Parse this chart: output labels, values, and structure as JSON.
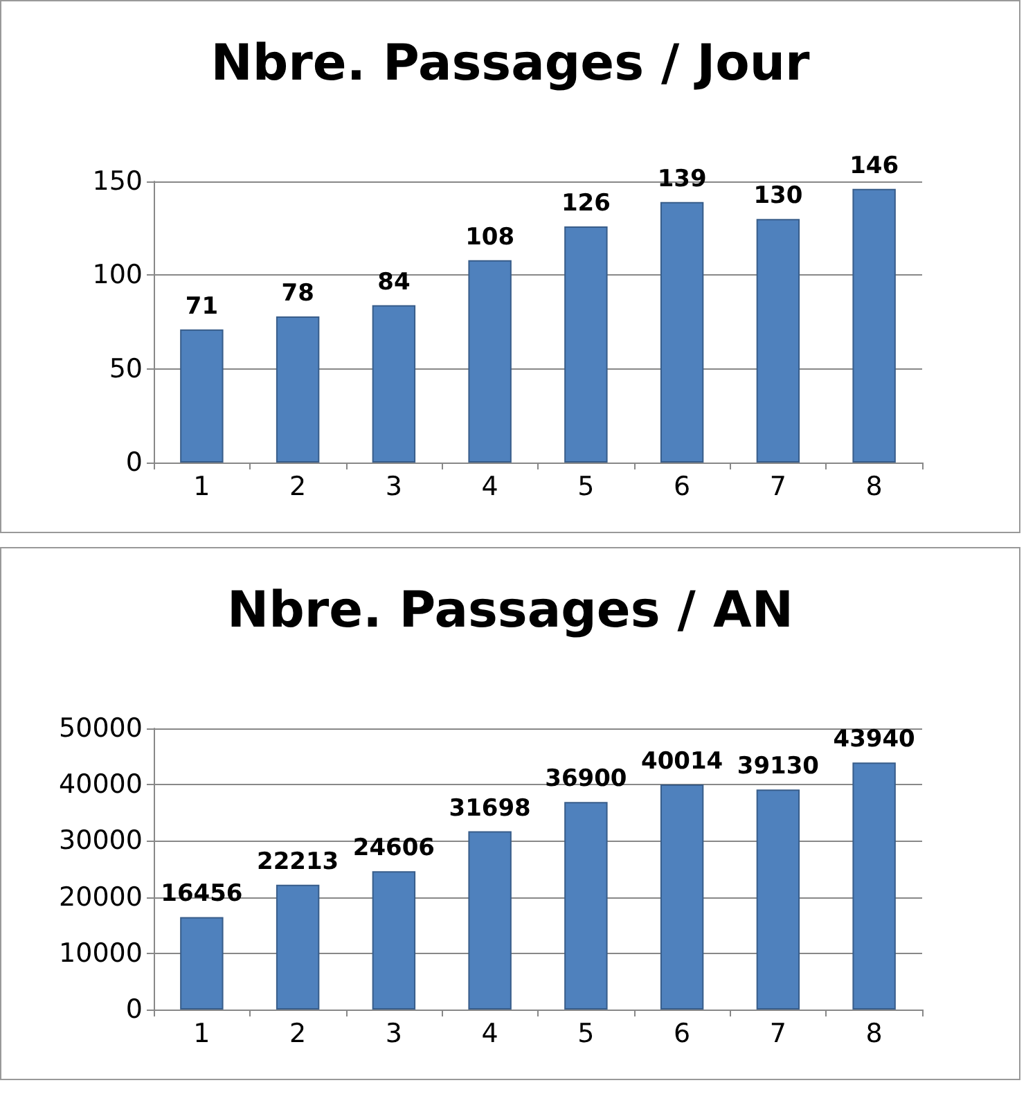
{
  "chart_data": [
    {
      "type": "bar",
      "title": "Nbre. Passages / Jour",
      "categories": [
        "1",
        "2",
        "3",
        "4",
        "5",
        "6",
        "7",
        "8"
      ],
      "values": [
        71,
        78,
        84,
        108,
        126,
        139,
        130,
        146
      ],
      "color": "#4f81bd",
      "ylim": [
        0,
        150
      ],
      "yticks": [
        0,
        50,
        100,
        150
      ],
      "grid": "y",
      "data_labels": true
    },
    {
      "type": "bar",
      "title": "Nbre. Passages / AN",
      "categories": [
        "1",
        "2",
        "3",
        "4",
        "5",
        "6",
        "7",
        "8"
      ],
      "values": [
        16456,
        22213,
        24606,
        31698,
        36900,
        40014,
        39130,
        43940
      ],
      "color": "#4f81bd",
      "ylim": [
        0,
        50000
      ],
      "yticks": [
        0,
        10000,
        20000,
        30000,
        40000,
        50000
      ],
      "grid": "y",
      "data_labels": true
    }
  ]
}
